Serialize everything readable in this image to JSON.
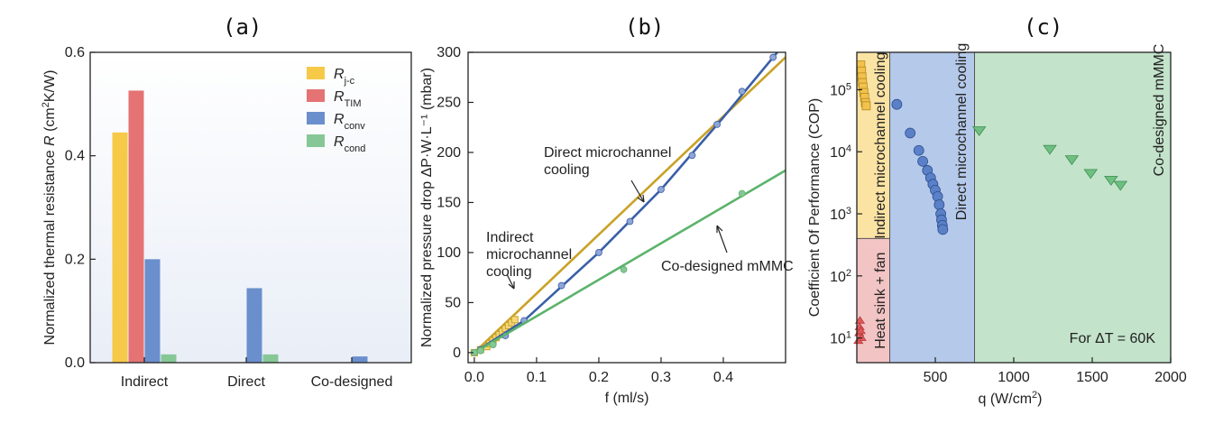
{
  "chart_data": [
    {
      "panel": "(a)",
      "type": "bar",
      "ylabel_parts": [
        "Normalized thermal resistance ",
        "R",
        " (cm",
        "2",
        "K/W)"
      ],
      "ylim": [
        0,
        0.6
      ],
      "yticks": [
        "0.0",
        "0.2",
        "0.4",
        "0.6"
      ],
      "categories": [
        "Indirect",
        "Direct",
        "Co-designed"
      ],
      "legend": "top-right",
      "series": [
        {
          "name": "R",
          "sub": "j-c",
          "color": "#f7c948",
          "values": [
            0.445,
            0,
            0
          ]
        },
        {
          "name": "R",
          "sub": "TIM",
          "color": "#e57373",
          "values": [
            0.526,
            0,
            0
          ]
        },
        {
          "name": "R",
          "sub": "conv",
          "color": "#6a8fcc",
          "values": [
            0.2,
            0.144,
            0.012
          ]
        },
        {
          "name": "R",
          "sub": "cond",
          "color": "#86c796",
          "values": [
            0.016,
            0.016,
            0
          ]
        }
      ]
    },
    {
      "panel": "(b)",
      "type": "scatter",
      "xlabel": "f (ml/s)",
      "ylabel": "Normalized pressure drop ΔP·W·L⁻¹ (mbar)",
      "xlim": [
        -0.01,
        0.5
      ],
      "ylim": [
        -10,
        300
      ],
      "xticks": [
        "0.0",
        "0.1",
        "0.2",
        "0.3",
        "0.4"
      ],
      "yticks": [
        "0",
        "50",
        "100",
        "150",
        "200",
        "250",
        "300"
      ],
      "series": [
        {
          "label": "Indirect microchannel cooling",
          "color": "#c9a227",
          "points": [
            [
              0.0,
              0
            ],
            [
              0.01,
              3
            ],
            [
              0.02,
              6
            ],
            [
              0.025,
              9
            ],
            [
              0.03,
              12
            ],
            [
              0.035,
              15
            ],
            [
              0.04,
              18
            ],
            [
              0.045,
              21
            ],
            [
              0.05,
              24
            ],
            [
              0.055,
              27
            ],
            [
              0.06,
              30
            ],
            [
              0.065,
              33
            ]
          ],
          "fit": [
            [
              0.0,
              0
            ],
            [
              0.5,
              295
            ]
          ]
        },
        {
          "label": "Direct microchannel cooling",
          "color": "#3a5fa8",
          "points": [
            [
              0.0,
              0
            ],
            [
              0.01,
              3
            ],
            [
              0.03,
              8
            ],
            [
              0.05,
              17
            ],
            [
              0.08,
              32
            ],
            [
              0.14,
              67
            ],
            [
              0.2,
              100
            ],
            [
              0.25,
              131
            ],
            [
              0.3,
              163
            ],
            [
              0.35,
              197
            ],
            [
              0.39,
              228
            ],
            [
              0.43,
              261
            ],
            [
              0.48,
              295
            ]
          ],
          "fit": [
            [
              0.0,
              0
            ],
            [
              0.08,
              32
            ],
            [
              0.2,
              100
            ],
            [
              0.3,
              163
            ],
            [
              0.4,
              235
            ],
            [
              0.5,
              310
            ]
          ]
        },
        {
          "label": "Co-designed mMMC",
          "color": "#5bb36a",
          "points": [
            [
              0.0,
              0
            ],
            [
              0.01,
              2
            ],
            [
              0.03,
              8
            ],
            [
              0.24,
              83
            ],
            [
              0.43,
              159
            ]
          ],
          "fit": [
            [
              0.0,
              0
            ],
            [
              0.5,
              182
            ]
          ]
        }
      ],
      "annotations": [
        {
          "lines": [
            "Direct microchannel",
            "cooling"
          ],
          "color": "#3a5fa8"
        },
        {
          "lines": [
            "Indirect",
            "microchannel",
            "cooling"
          ],
          "color": "#a8851c"
        },
        {
          "lines": [
            "Co-designed mMMC"
          ],
          "color": "#3f8f53"
        }
      ]
    },
    {
      "panel": "(c)",
      "type": "scatter",
      "xlabel_parts": [
        "q (W/cm",
        "2",
        ")"
      ],
      "ylabel": "Coefficient Of Performance (COP)",
      "xlim": [
        0,
        2000
      ],
      "ylim": [
        4,
        400000
      ],
      "yscale": "log",
      "xticks": [
        "500",
        "1000",
        "1500",
        "2000"
      ],
      "yticks": [
        {
          "b": "10",
          "e": "1"
        },
        {
          "b": "10",
          "e": "2"
        },
        {
          "b": "10",
          "e": "3"
        },
        {
          "b": "10",
          "e": "4"
        },
        {
          "b": "10",
          "e": "5"
        }
      ],
      "regions": [
        {
          "label": "Heat sink + fan",
          "color": "#f2c4c4",
          "text_color": "#cc3333"
        },
        {
          "label": "Indirect microchannel cooling",
          "color": "#fbe3a3",
          "text_color": "#a8851c"
        },
        {
          "label": "Direct microchannel cooling",
          "color": "#b5c9ea",
          "text_color": "#3a5fa8"
        },
        {
          "label": "Co-designed mMMC",
          "color": "#c3e3cb",
          "text_color": "#3f8f53"
        }
      ],
      "series": [
        {
          "marker": "triangle-up",
          "color": "#e05656",
          "points": [
            [
              10,
              9
            ],
            [
              15,
              12
            ],
            [
              18,
              15
            ],
            [
              20,
              19
            ],
            [
              25,
              13
            ],
            [
              30,
              10
            ]
          ]
        },
        {
          "marker": "square",
          "color": "#f2c14e",
          "points": [
            [
              25,
              250000
            ],
            [
              30,
              200000
            ],
            [
              33,
              160000
            ],
            [
              36,
              130000
            ],
            [
              40,
              110000
            ],
            [
              45,
              90000
            ],
            [
              50,
              75000
            ],
            [
              55,
              62000
            ],
            [
              60,
              55000
            ]
          ]
        },
        {
          "marker": "circle",
          "color": "#5a80c8",
          "points": [
            [
              255,
              58000
            ],
            [
              340,
              20000
            ],
            [
              395,
              10500
            ],
            [
              420,
              7000
            ],
            [
              450,
              5000
            ],
            [
              470,
              3800
            ],
            [
              485,
              3000
            ],
            [
              500,
              2400
            ],
            [
              515,
              1900
            ],
            [
              525,
              1400
            ],
            [
              535,
              1000
            ],
            [
              540,
              800
            ],
            [
              545,
              650
            ],
            [
              548,
              560
            ]
          ]
        },
        {
          "marker": "triangle-down",
          "color": "#6fbf80",
          "points": [
            [
              780,
              22000
            ],
            [
              1230,
              11000
            ],
            [
              1370,
              7500
            ],
            [
              1490,
              4500
            ],
            [
              1620,
              3500
            ],
            [
              1680,
              2900
            ]
          ]
        }
      ],
      "note": "For ΔT = 60K"
    }
  ]
}
